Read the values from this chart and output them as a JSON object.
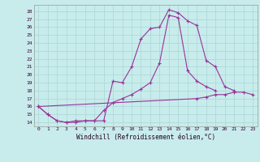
{
  "xlabel": "Windchill (Refroidissement éolien,°C)",
  "bg_color": "#c8ecec",
  "grid_color": "#b0d8d8",
  "line_color": "#993399",
  "x_ticks": [
    0,
    1,
    2,
    3,
    4,
    5,
    6,
    7,
    8,
    9,
    10,
    11,
    12,
    13,
    14,
    15,
    16,
    17,
    18,
    19,
    20,
    21,
    22,
    23
  ],
  "y_ticks": [
    14,
    15,
    16,
    17,
    18,
    19,
    20,
    21,
    22,
    23,
    24,
    25,
    26,
    27,
    28
  ],
  "ylim": [
    13.5,
    28.8
  ],
  "xlim": [
    -0.5,
    23.5
  ],
  "line1": [
    16.0,
    15.0,
    14.2,
    14.0,
    14.0,
    14.2,
    14.2,
    14.2,
    19.2,
    19.0,
    21.0,
    24.5,
    25.8,
    26.0,
    28.2,
    27.8,
    26.8,
    26.2,
    21.8,
    21.0,
    18.5,
    18.0,
    null,
    null
  ],
  "line2": [
    16.0,
    15.0,
    14.2,
    14.0,
    14.2,
    14.2,
    14.2,
    15.5,
    16.5,
    17.0,
    17.5,
    18.2,
    19.0,
    21.5,
    27.5,
    27.2,
    20.5,
    19.2,
    18.5,
    18.0,
    null,
    null,
    null,
    null
  ],
  "line3": [
    16.0,
    null,
    null,
    null,
    null,
    null,
    null,
    null,
    null,
    null,
    null,
    null,
    null,
    null,
    null,
    null,
    null,
    17.0,
    17.2,
    17.5,
    17.5,
    17.8,
    17.8,
    17.5
  ]
}
